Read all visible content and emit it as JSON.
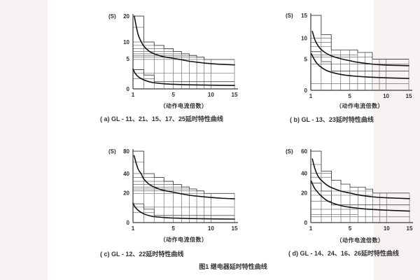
{
  "page": {
    "figure_title": "图1  继电器延时特性曲线"
  },
  "colors": {
    "background": "#f8f3f2",
    "panel": "#ffffff",
    "grid": "#707070",
    "steps": "#4a4a4a",
    "curve": "#141414",
    "axis": "#3a3a3a",
    "text": "#2e2e2e"
  },
  "chart_data": [
    {
      "id": "a",
      "type": "line",
      "caption": "( a) GL - 11、21、15、17、25延时特性曲线",
      "unit_label": "(S)",
      "xlabel": "（动作电流倍数）",
      "xlim": [
        1,
        15
      ],
      "ylim": [
        0,
        20
      ],
      "x_ticks": [
        {
          "v": 1,
          "label": "1"
        },
        {
          "v": 5,
          "label": "5"
        },
        {
          "v": 10,
          "label": "10"
        },
        {
          "v": 15,
          "label": "15"
        }
      ],
      "y_ticks": [
        {
          "v": 0,
          "label": "0"
        },
        {
          "v": 5,
          "label": "5"
        },
        {
          "v": 10,
          "label": "10"
        },
        {
          "v": 20,
          "label": "20"
        }
      ],
      "x_anchors": [
        [
          1,
          0
        ],
        [
          2,
          0.106
        ],
        [
          3,
          0.209
        ],
        [
          4,
          0.305
        ],
        [
          5,
          0.397
        ],
        [
          6,
          0.478
        ],
        [
          7,
          0.554
        ],
        [
          8,
          0.628
        ],
        [
          9,
          0.7
        ],
        [
          10,
          0.768
        ],
        [
          15,
          1
        ]
      ],
      "y_anchors": [
        [
          0,
          0
        ],
        [
          5,
          0.413
        ],
        [
          10,
          0.644
        ],
        [
          15,
          0.846
        ],
        [
          20,
          1
        ]
      ],
      "grid_x": [
        2,
        3,
        4,
        5,
        6,
        7,
        8,
        9,
        10,
        15
      ],
      "steps": [
        [
          1,
          2,
          20
        ],
        [
          2,
          3,
          10
        ],
        [
          3,
          4,
          9
        ],
        [
          4,
          5,
          8
        ],
        [
          5,
          6,
          7.2
        ],
        [
          6,
          7,
          6.5
        ],
        [
          7,
          8,
          6
        ],
        [
          8,
          9,
          5.5
        ],
        [
          9,
          15,
          4.9
        ]
      ],
      "steps2": [
        [
          1,
          2,
          3.2
        ],
        [
          2,
          3,
          2.3
        ],
        [
          3,
          15,
          1.2
        ]
      ],
      "hlines": [
        [
          15,
          2
        ],
        [
          10,
          3
        ],
        [
          9,
          4
        ],
        [
          8,
          5
        ],
        [
          7.2,
          6
        ],
        [
          6.5,
          7
        ],
        [
          6,
          8
        ],
        [
          5.5,
          9
        ],
        [
          4.9,
          15
        ],
        [
          2.6,
          15
        ],
        [
          1.7,
          3
        ]
      ],
      "series": [
        {
          "name": "upper-limit-curve",
          "points": [
            [
              1.12,
              20
            ],
            [
              1.3,
              15.5
            ],
            [
              1.5,
              12.3
            ],
            [
              1.75,
              10.2
            ],
            [
              2,
              8.8
            ],
            [
              2.5,
              7.3
            ],
            [
              3,
              6.5
            ],
            [
              3.5,
              6
            ],
            [
              4,
              5.6
            ],
            [
              5,
              5.15
            ],
            [
              6,
              4.85
            ],
            [
              7,
              4.6
            ],
            [
              8,
              4.45
            ],
            [
              9,
              4.3
            ],
            [
              10,
              4.2
            ],
            [
              12,
              4.1
            ],
            [
              15,
              4
            ]
          ]
        },
        {
          "name": "lower-limit-curve",
          "points": [
            [
              1,
              3.3
            ],
            [
              1.2,
              2.6
            ],
            [
              1.5,
              2
            ],
            [
              2,
              1.5
            ],
            [
              2.5,
              1.2
            ],
            [
              3,
              1.02
            ],
            [
              4,
              0.85
            ],
            [
              5,
              0.76
            ],
            [
              7,
              0.68
            ],
            [
              10,
              0.62
            ],
            [
              15,
              0.58
            ]
          ]
        }
      ]
    },
    {
      "id": "b",
      "type": "line",
      "caption": "( b) GL - 13、23延时特性曲线",
      "unit_label": "(S)",
      "xlabel": "（动作电流倍数）",
      "xlim": [
        1,
        15
      ],
      "ylim": [
        0,
        15
      ],
      "x_ticks": [
        {
          "v": 1,
          "label": "1"
        },
        {
          "v": 5,
          "label": "5"
        },
        {
          "v": 10,
          "label": "10"
        },
        {
          "v": 15,
          "label": "15"
        }
      ],
      "y_ticks": [
        {
          "v": 0,
          "label": "0"
        },
        {
          "v": 5,
          "label": "5"
        },
        {
          "v": 10,
          "label": "10"
        },
        {
          "v": 15,
          "label": "15"
        }
      ],
      "x_anchors": [
        [
          1,
          0
        ],
        [
          2,
          0.106
        ],
        [
          3,
          0.209
        ],
        [
          4,
          0.305
        ],
        [
          5,
          0.397
        ],
        [
          6,
          0.478
        ],
        [
          7,
          0.554
        ],
        [
          8,
          0.628
        ],
        [
          9,
          0.7
        ],
        [
          10,
          0.768
        ],
        [
          15,
          1
        ]
      ],
      "y_anchors": [
        [
          0,
          0
        ],
        [
          5,
          0.416
        ],
        [
          10,
          0.695
        ],
        [
          15,
          1
        ]
      ],
      "grid_x": [
        2,
        3,
        4,
        5,
        6,
        7,
        8,
        9,
        10,
        15
      ],
      "steps": [
        [
          1,
          2,
          15
        ],
        [
          2,
          3,
          10.8
        ],
        [
          3,
          6,
          7.2
        ],
        [
          6,
          8,
          6.6
        ],
        [
          8,
          15,
          5
        ]
      ],
      "steps2": [
        [
          1,
          2,
          6.8
        ],
        [
          2,
          3,
          4.6
        ],
        [
          3,
          15,
          3.1
        ]
      ],
      "hlines": [
        [
          10,
          3
        ],
        [
          9,
          3
        ],
        [
          8,
          3
        ],
        [
          6,
          6
        ],
        [
          5.5,
          8
        ],
        [
          4.2,
          15
        ],
        [
          1.05,
          15
        ]
      ],
      "series": [
        {
          "name": "upper-limit-curve",
          "points": [
            [
              1.15,
              11.5
            ],
            [
              1.4,
              9.6
            ],
            [
              1.7,
              8.2
            ],
            [
              2,
              7.3
            ],
            [
              2.5,
              6.4
            ],
            [
              3,
              5.8
            ],
            [
              4,
              5.1
            ],
            [
              5,
              4.75
            ],
            [
              6,
              4.5
            ],
            [
              8,
              4.2
            ],
            [
              10,
              4.05
            ],
            [
              15,
              3.95
            ]
          ]
        },
        {
          "name": "lower-limit-curve",
          "points": [
            [
              1.05,
              6.3
            ],
            [
              1.3,
              5.1
            ],
            [
              1.6,
              4.3
            ],
            [
              2,
              3.7
            ],
            [
              2.5,
              3.2
            ],
            [
              3,
              2.9
            ],
            [
              4,
              2.55
            ],
            [
              5,
              2.35
            ],
            [
              7,
              2.15
            ],
            [
              10,
              2
            ],
            [
              15,
              1.9
            ]
          ]
        }
      ]
    },
    {
      "id": "c",
      "type": "line",
      "caption": "( c) GL - 12、22延时特性曲线",
      "unit_label": "(S)",
      "xlabel": "（动作电流倍数）",
      "xlim": [
        1,
        15
      ],
      "ylim": [
        0,
        80
      ],
      "x_ticks": [
        {
          "v": 1,
          "label": "1"
        },
        {
          "v": 5,
          "label": "5"
        },
        {
          "v": 10,
          "label": "10"
        },
        {
          "v": 15,
          "label": "15"
        }
      ],
      "y_ticks": [
        {
          "v": 0,
          "label": "0"
        },
        {
          "v": 20,
          "label": "20"
        },
        {
          "v": 40,
          "label": "40"
        },
        {
          "v": 80,
          "label": "80"
        }
      ],
      "x_anchors": [
        [
          1,
          0
        ],
        [
          2,
          0.106
        ],
        [
          3,
          0.209
        ],
        [
          4,
          0.305
        ],
        [
          5,
          0.397
        ],
        [
          6,
          0.478
        ],
        [
          7,
          0.554
        ],
        [
          8,
          0.628
        ],
        [
          9,
          0.7
        ],
        [
          10,
          0.768
        ],
        [
          15,
          1
        ]
      ],
      "y_anchors": [
        [
          0,
          0
        ],
        [
          20,
          0.417
        ],
        [
          40,
          0.686
        ],
        [
          60,
          0.846
        ],
        [
          80,
          1
        ]
      ],
      "grid_x": [
        2,
        3,
        4,
        5,
        6,
        7,
        8,
        9,
        10,
        15
      ],
      "steps": [
        [
          1,
          2,
          80
        ],
        [
          2,
          3,
          40
        ],
        [
          3,
          4,
          36
        ],
        [
          4,
          5,
          32
        ],
        [
          5,
          6,
          28.8
        ],
        [
          6,
          7,
          26
        ],
        [
          7,
          8,
          24
        ],
        [
          8,
          9,
          22
        ],
        [
          9,
          15,
          19.6
        ]
      ],
      "steps2": [
        [
          1,
          2,
          12.6
        ],
        [
          2,
          3,
          9
        ],
        [
          3,
          15,
          4.8
        ]
      ],
      "hlines": [
        [
          60,
          2
        ],
        [
          40,
          3
        ],
        [
          36,
          4
        ],
        [
          32,
          5
        ],
        [
          28.8,
          6
        ],
        [
          26,
          7
        ],
        [
          24,
          8
        ],
        [
          22,
          9
        ],
        [
          19.6,
          15
        ],
        [
          10.4,
          15
        ],
        [
          6.7,
          3
        ]
      ],
      "series": [
        {
          "name": "upper-limit-curve",
          "points": [
            [
              1.1,
              72
            ],
            [
              1.3,
              58
            ],
            [
              1.5,
              47
            ],
            [
              1.75,
              40
            ],
            [
              2,
              34.5
            ],
            [
              2.5,
              29
            ],
            [
              3,
              26
            ],
            [
              3.5,
              24
            ],
            [
              4,
              22.5
            ],
            [
              5,
              20.6
            ],
            [
              6,
              19.3
            ],
            [
              7,
              18.4
            ],
            [
              8,
              17.8
            ],
            [
              9,
              17.3
            ],
            [
              10,
              16.9
            ],
            [
              12,
              16.4
            ],
            [
              15,
              16
            ]
          ]
        },
        {
          "name": "lower-limit-curve",
          "points": [
            [
              1,
              13
            ],
            [
              1.2,
              10.4
            ],
            [
              1.5,
              8.1
            ],
            [
              2,
              5.9
            ],
            [
              2.5,
              4.7
            ],
            [
              3,
              4
            ],
            [
              4,
              3.4
            ],
            [
              5,
              3.05
            ],
            [
              7,
              2.75
            ],
            [
              10,
              2.5
            ],
            [
              15,
              2.35
            ]
          ]
        }
      ]
    },
    {
      "id": "d",
      "type": "line",
      "caption": "( d) GL - 14、24、16、26延时特性曲线",
      "unit_label": "(S)",
      "xlabel": "（动作电流倍数）",
      "xlim": [
        1,
        15
      ],
      "ylim": [
        0,
        60
      ],
      "x_ticks": [
        {
          "v": 1,
          "label": "1"
        },
        {
          "v": 5,
          "label": "5"
        },
        {
          "v": 10,
          "label": "10"
        },
        {
          "v": 15,
          "label": "15"
        }
      ],
      "y_ticks": [
        {
          "v": 0,
          "label": "0"
        },
        {
          "v": 20,
          "label": "20"
        },
        {
          "v": 40,
          "label": "40"
        },
        {
          "v": 60,
          "label": "60"
        }
      ],
      "x_anchors": [
        [
          1,
          0
        ],
        [
          2,
          0.106
        ],
        [
          3,
          0.209
        ],
        [
          4,
          0.305
        ],
        [
          5,
          0.397
        ],
        [
          6,
          0.478
        ],
        [
          7,
          0.554
        ],
        [
          8,
          0.628
        ],
        [
          9,
          0.7
        ],
        [
          10,
          0.768
        ],
        [
          15,
          1
        ]
      ],
      "y_anchors": [
        [
          0,
          0
        ],
        [
          20,
          0.414
        ],
        [
          40,
          0.69
        ],
        [
          60,
          1
        ]
      ],
      "grid_x": [
        2,
        3,
        4,
        5,
        6,
        7,
        8,
        9,
        10,
        15
      ],
      "steps": [
        [
          1,
          2,
          60
        ],
        [
          2,
          3,
          42
        ],
        [
          3,
          4,
          33
        ],
        [
          4,
          5,
          29
        ],
        [
          5,
          7,
          26
        ],
        [
          7,
          8,
          24
        ],
        [
          8,
          15,
          20
        ]
      ],
      "steps2": [
        [
          1,
          2,
          30
        ],
        [
          2,
          3,
          22
        ],
        [
          3,
          15,
          12
        ]
      ],
      "hlines": [
        [
          48,
          2
        ],
        [
          40,
          3
        ],
        [
          36,
          3
        ],
        [
          22,
          8
        ],
        [
          18.5,
          8
        ],
        [
          14.5,
          3
        ],
        [
          9,
          6
        ],
        [
          5.5,
          6
        ],
        [
          3.9,
          15
        ]
      ],
      "series": [
        {
          "name": "upper-limit-curve",
          "points": [
            [
              1.15,
              53
            ],
            [
              1.4,
              44
            ],
            [
              1.7,
              37
            ],
            [
              2,
              33
            ],
            [
              2.5,
              28.5
            ],
            [
              3,
              25.5
            ],
            [
              4,
              22
            ],
            [
              5,
              20
            ],
            [
              6,
              18.8
            ],
            [
              8,
              17.4
            ],
            [
              10,
              16.8
            ],
            [
              15,
              16.2
            ]
          ]
        },
        {
          "name": "lower-limit-curve",
          "points": [
            [
              1.05,
              32
            ],
            [
              1.3,
              26
            ],
            [
              1.6,
              21.5
            ],
            [
              2,
              18
            ],
            [
              2.5,
              15.2
            ],
            [
              3,
              13.5
            ],
            [
              4,
              11.5
            ],
            [
              5,
              10.4
            ],
            [
              7,
              9.2
            ],
            [
              10,
              8.4
            ],
            [
              15,
              7.8
            ]
          ]
        }
      ]
    }
  ]
}
